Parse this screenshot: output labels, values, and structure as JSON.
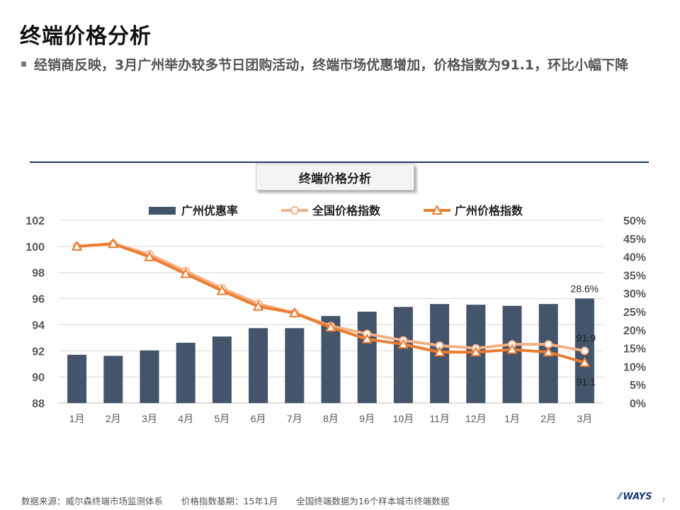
{
  "page": {
    "title": "终端价格分析",
    "bullet": "经销商反映，3月广州举办较多节日团购活动，终端市场优惠增加，价格指数为91.1，环比小幅下降"
  },
  "chart_data": {
    "type": "bar+line",
    "title": "终端价格分析",
    "categories": [
      "1月",
      "2月",
      "3月",
      "4月",
      "5月",
      "6月",
      "7月",
      "8月",
      "9月",
      "10月",
      "11月",
      "12月",
      "1月",
      "2月",
      "3月"
    ],
    "left_axis": {
      "min": 88,
      "max": 102,
      "ticks": [
        "88",
        "90",
        "92",
        "94",
        "96",
        "98",
        "100",
        "102"
      ]
    },
    "right_axis": {
      "min": 0,
      "max": 50,
      "ticks": [
        "0%",
        "5%",
        "10%",
        "15%",
        "20%",
        "25%",
        "30%",
        "35%",
        "40%",
        "45%",
        "50%"
      ]
    },
    "series": [
      {
        "name": "广州优惠率",
        "kind": "bar",
        "axis": "right",
        "color": "#44546a",
        "values": [
          13.2,
          12.9,
          14.4,
          16.5,
          18.2,
          20.5,
          20.5,
          23.8,
          25.0,
          26.3,
          27.1,
          26.9,
          26.6,
          27.1,
          28.6
        ]
      },
      {
        "name": "全国价格指数",
        "kind": "line",
        "axis": "left",
        "marker": "circle",
        "color": "#f4b183",
        "values": [
          100.0,
          100.2,
          99.4,
          98.1,
          96.8,
          95.6,
          94.9,
          93.9,
          93.3,
          92.8,
          92.4,
          92.2,
          92.5,
          92.5,
          92.0
        ]
      },
      {
        "name": "广州价格指数",
        "kind": "line",
        "axis": "left",
        "marker": "triangle",
        "color": "#ed7d31",
        "values": [
          100.0,
          100.2,
          99.2,
          97.9,
          96.6,
          95.4,
          94.9,
          93.8,
          92.9,
          92.5,
          91.9,
          91.9,
          92.1,
          91.9,
          91.1
        ]
      }
    ],
    "data_labels": [
      {
        "text": "28.6%",
        "series": "广州优惠率"
      },
      {
        "text": "91.9"
      },
      {
        "text": "91.1"
      }
    ],
    "grid": true,
    "legend_position": "top"
  },
  "footer": {
    "source": "数据来源：威尔森终端市场监测体系",
    "base": "价格指数基期：15年1月",
    "note": "全国终端数据为16个样本城市终端数据",
    "logo": "WAYS",
    "page_number": "7"
  },
  "colors": {
    "bar": "#44546a",
    "national_line": "#f4b183",
    "guangzhou_line": "#ed7d31",
    "rule": "#1f3a5f"
  }
}
